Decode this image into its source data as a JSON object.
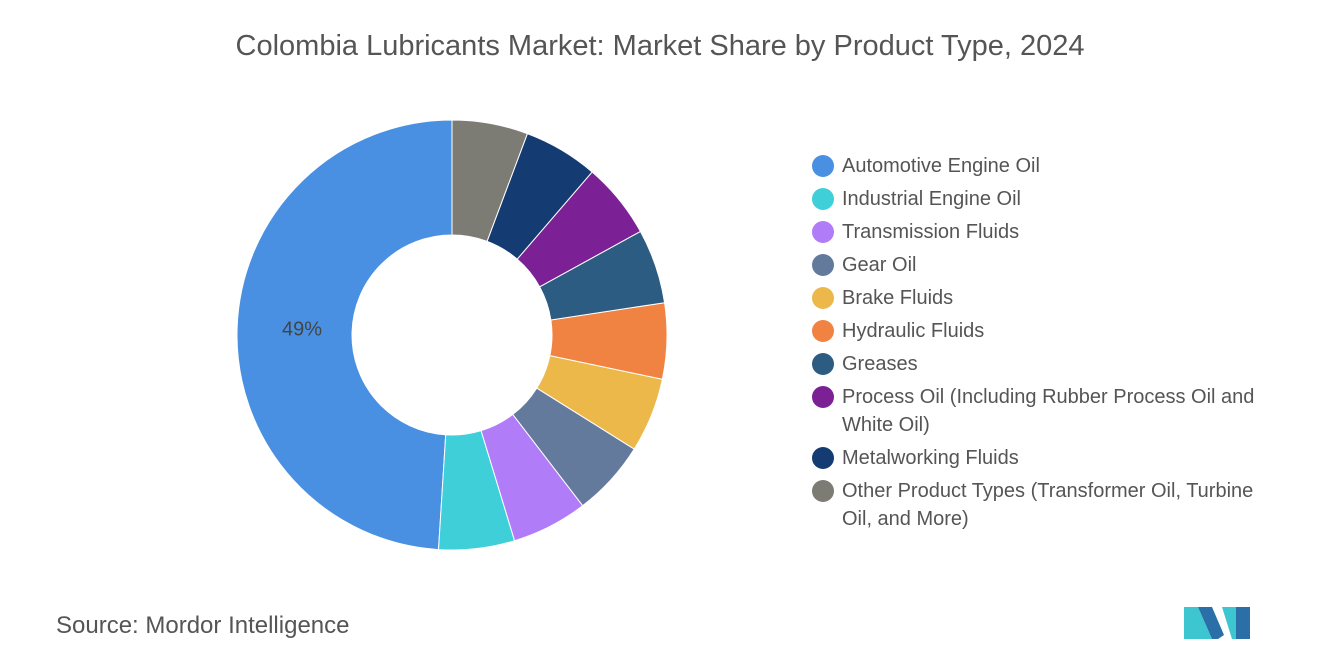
{
  "chart_data": {
    "type": "donut",
    "title": "Colombia Lubricants Market: Market Share by Product Type, 2024",
    "categories": [
      "Automotive Engine Oil",
      "Industrial Engine Oil",
      "Transmission Fluids",
      "Gear Oil",
      "Brake Fluids",
      "Hydraulic Fluids",
      "Greases",
      "Process Oil (Including Rubber Process Oil and White Oil)",
      "Metalworking Fluids",
      "Other Product Types (Transformer Oil, Turbine Oil, and More)"
    ],
    "values": [
      49,
      5.7,
      5.7,
      5.7,
      5.6,
      5.7,
      5.6,
      5.7,
      5.6,
      5.7
    ],
    "value_labels": [
      "49%",
      null,
      null,
      null,
      null,
      null,
      null,
      null,
      null,
      null
    ],
    "colors": [
      "#4a90e2",
      "#3ecfd8",
      "#b07cf7",
      "#647a9c",
      "#ecb84a",
      "#f08242",
      "#2c5c82",
      "#7b2195",
      "#143c72",
      "#7c7c74"
    ],
    "source": "Source:  Mordor Intelligence"
  }
}
